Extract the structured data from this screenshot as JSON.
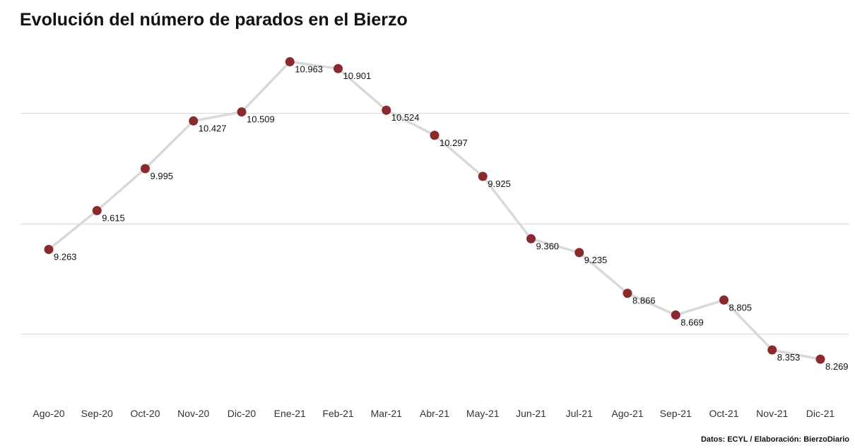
{
  "title": "Evolución del número de parados en el Bierzo",
  "source": "Datos: ECYL / Elaboración: BierzoDiario",
  "chart_data": {
    "type": "line",
    "title": "Evolución del número de parados en el Bierzo",
    "xlabel": "",
    "ylabel": "",
    "categories": [
      "Ago-20",
      "Sep-20",
      "Oct-20",
      "Nov-20",
      "Dic-20",
      "Ene-21",
      "Feb-21",
      "Mar-21",
      "Abr-21",
      "May-21",
      "Jun-21",
      "Jul-21",
      "Ago-21",
      "Sep-21",
      "Oct-21",
      "Nov-21",
      "Dic-21"
    ],
    "series": [
      {
        "values": [
          9263,
          9615,
          9995,
          10427,
          10509,
          10963,
          10901,
          10524,
          10297,
          9925,
          9360,
          9235,
          8866,
          8669,
          8805,
          8353,
          8269
        ],
        "labels": [
          "9.263",
          "9.615",
          "9.995",
          "10.427",
          "10.509",
          "10.963",
          "10.901",
          "10.524",
          "10.297",
          "9.925",
          "9.360",
          "9.235",
          "8.866",
          "8.669",
          "8.805",
          "8.353",
          "8.269"
        ]
      }
    ],
    "ylim": [
      7500,
      11500
    ],
    "gridlines": [
      8500,
      9500,
      10500
    ],
    "grid": true,
    "legend": "none",
    "colors": {
      "line": "#d9d9d9",
      "point": "#8b2a2e",
      "gridline": "#d9d9d9"
    }
  }
}
